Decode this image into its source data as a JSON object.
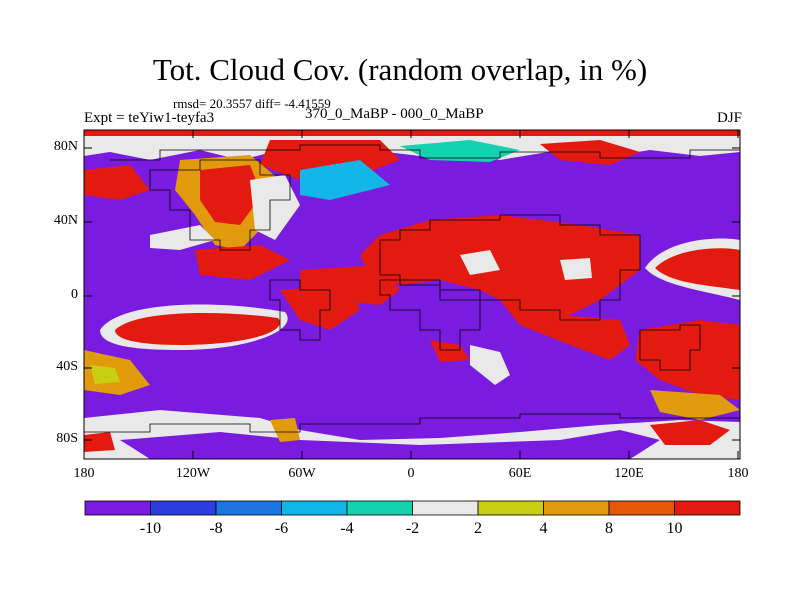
{
  "header": {
    "title": "Tot. Cloud Cov. (random overlap, in %)",
    "stats": "rmsd= 20.3557 diff= -4.41559",
    "experiment": "Expt = teYiw1-teyfa3",
    "difference_label": "370_0_MaBP - 000_0_MaBP",
    "season": "DJF"
  },
  "map": {
    "lat_ticks": [
      "80N",
      "40N",
      "0",
      "40S",
      "80S"
    ],
    "lon_ticks": [
      "180",
      "120W",
      "60W",
      "0",
      "60E",
      "120E",
      "180"
    ],
    "lon_range": [
      -180,
      180
    ],
    "lat_range": [
      -90,
      90
    ],
    "colors": {
      "purple": "#7a1cdf",
      "blue": "#2e3de0",
      "mid_blue": "#1b74e0",
      "cyan": "#12b6e6",
      "teal": "#14d2b0",
      "white": "#e9e9e9",
      "yellow": "#c8cf10",
      "orange": "#e19a0c",
      "dark_orange": "#e5580a",
      "red": "#e31a0f"
    }
  },
  "colorbar": {
    "colors": [
      "#7a1cdf",
      "#2e3de0",
      "#1b74e0",
      "#12b6e6",
      "#14d2b0",
      "#e9e9e9",
      "#c8cf10",
      "#e19a0c",
      "#e5580a",
      "#e31a0f"
    ],
    "labels": [
      "-10",
      "-8",
      "-6",
      "-4",
      "-2",
      "2",
      "4",
      "8",
      "10"
    ]
  }
}
